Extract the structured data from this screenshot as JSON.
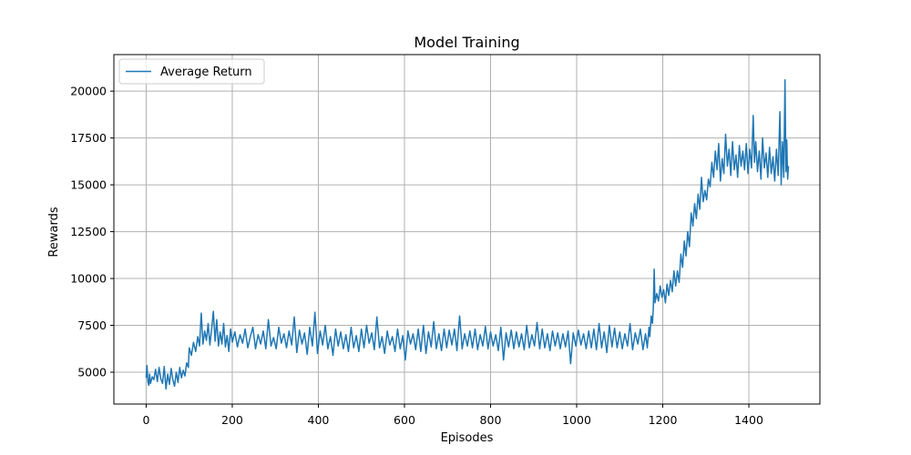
{
  "chart_data": {
    "type": "line",
    "title": "Model Training",
    "xlabel": "Episodes",
    "ylabel": "Rewards",
    "xlim": [
      -75,
      1565
    ],
    "ylim": [
      3300,
      21950
    ],
    "xticks": [
      0,
      200,
      400,
      600,
      800,
      1000,
      1200,
      1400
    ],
    "yticks": [
      5000,
      7500,
      10000,
      12500,
      15000,
      17500,
      20000
    ],
    "xtick_labels": [
      "0",
      "200",
      "400",
      "600",
      "800",
      "1000",
      "1200",
      "1400"
    ],
    "ytick_labels": [
      "5000",
      "7500",
      "10000",
      "12500",
      "15000",
      "17500",
      "20000"
    ],
    "grid": true,
    "legend_position": "upper left",
    "colors": {
      "series": "#1f77b4",
      "grid": "#b0b0b0",
      "axes": "#000000"
    },
    "series": [
      {
        "name": "Average Return",
        "points": [
          [
            0,
            4700
          ],
          [
            2,
            5350
          ],
          [
            4,
            4500
          ],
          [
            6,
            4300
          ],
          [
            8,
            4900
          ],
          [
            10,
            4400
          ],
          [
            14,
            4750
          ],
          [
            18,
            4600
          ],
          [
            22,
            5150
          ],
          [
            26,
            4500
          ],
          [
            30,
            5250
          ],
          [
            34,
            4650
          ],
          [
            38,
            4400
          ],
          [
            42,
            5300
          ],
          [
            46,
            4100
          ],
          [
            50,
            4900
          ],
          [
            54,
            4350
          ],
          [
            58,
            5200
          ],
          [
            62,
            4600
          ],
          [
            66,
            4250
          ],
          [
            70,
            5000
          ],
          [
            74,
            4450
          ],
          [
            78,
            5250
          ],
          [
            82,
            4700
          ],
          [
            86,
            5100
          ],
          [
            90,
            4800
          ],
          [
            94,
            5500
          ],
          [
            98,
            5250
          ],
          [
            100,
            6300
          ],
          [
            105,
            5900
          ],
          [
            110,
            6600
          ],
          [
            115,
            6100
          ],
          [
            120,
            6900
          ],
          [
            124,
            6400
          ],
          [
            128,
            8150
          ],
          [
            132,
            6500
          ],
          [
            136,
            7200
          ],
          [
            140,
            6700
          ],
          [
            144,
            7600
          ],
          [
            148,
            6450
          ],
          [
            152,
            7300
          ],
          [
            156,
            8250
          ],
          [
            160,
            6650
          ],
          [
            164,
            7800
          ],
          [
            168,
            6400
          ],
          [
            172,
            7150
          ],
          [
            176,
            6500
          ],
          [
            180,
            7600
          ],
          [
            184,
            6350
          ],
          [
            188,
            6950
          ],
          [
            192,
            6100
          ],
          [
            196,
            7300
          ],
          [
            200,
            6600
          ],
          [
            206,
            7150
          ],
          [
            212,
            6350
          ],
          [
            218,
            7000
          ],
          [
            224,
            6550
          ],
          [
            230,
            7300
          ],
          [
            236,
            6300
          ],
          [
            242,
            6900
          ],
          [
            248,
            7400
          ],
          [
            254,
            6250
          ],
          [
            260,
            7000
          ],
          [
            266,
            6500
          ],
          [
            272,
            7200
          ],
          [
            278,
            6250
          ],
          [
            284,
            7800
          ],
          [
            290,
            6400
          ],
          [
            296,
            6850
          ],
          [
            302,
            6250
          ],
          [
            308,
            7400
          ],
          [
            314,
            6550
          ],
          [
            320,
            7050
          ],
          [
            326,
            6300
          ],
          [
            332,
            7200
          ],
          [
            338,
            6450
          ],
          [
            344,
            7950
          ],
          [
            350,
            6050
          ],
          [
            356,
            7250
          ],
          [
            362,
            6500
          ],
          [
            368,
            7100
          ],
          [
            374,
            5950
          ],
          [
            380,
            7400
          ],
          [
            386,
            6400
          ],
          [
            392,
            8200
          ],
          [
            398,
            6000
          ],
          [
            404,
            7200
          ],
          [
            410,
            6450
          ],
          [
            416,
            7500
          ],
          [
            422,
            6250
          ],
          [
            428,
            6900
          ],
          [
            434,
            5900
          ],
          [
            440,
            7300
          ],
          [
            446,
            6400
          ],
          [
            452,
            7150
          ],
          [
            458,
            6250
          ],
          [
            464,
            7000
          ],
          [
            470,
            6100
          ],
          [
            476,
            7400
          ],
          [
            482,
            6300
          ],
          [
            488,
            6950
          ],
          [
            494,
            6100
          ],
          [
            500,
            7300
          ],
          [
            506,
            6300
          ],
          [
            512,
            7500
          ],
          [
            518,
            6550
          ],
          [
            524,
            7100
          ],
          [
            530,
            6200
          ],
          [
            536,
            7950
          ],
          [
            542,
            6300
          ],
          [
            548,
            6900
          ],
          [
            554,
            6000
          ],
          [
            560,
            7200
          ],
          [
            566,
            6450
          ],
          [
            572,
            6900
          ],
          [
            578,
            6100
          ],
          [
            584,
            7300
          ],
          [
            590,
            6250
          ],
          [
            596,
            6950
          ],
          [
            602,
            5650
          ],
          [
            608,
            7200
          ],
          [
            614,
            6500
          ],
          [
            620,
            7050
          ],
          [
            626,
            6200
          ],
          [
            632,
            7300
          ],
          [
            638,
            6100
          ],
          [
            644,
            7500
          ],
          [
            650,
            6000
          ],
          [
            656,
            7150
          ],
          [
            662,
            6350
          ],
          [
            668,
            7700
          ],
          [
            674,
            6250
          ],
          [
            680,
            7050
          ],
          [
            686,
            6150
          ],
          [
            692,
            7300
          ],
          [
            698,
            6300
          ],
          [
            704,
            7250
          ],
          [
            710,
            6450
          ],
          [
            716,
            7300
          ],
          [
            722,
            6150
          ],
          [
            728,
            8000
          ],
          [
            734,
            6250
          ],
          [
            740,
            7050
          ],
          [
            746,
            6400
          ],
          [
            752,
            7200
          ],
          [
            758,
            6300
          ],
          [
            764,
            7300
          ],
          [
            770,
            6200
          ],
          [
            776,
            7000
          ],
          [
            782,
            6400
          ],
          [
            788,
            7450
          ],
          [
            794,
            6250
          ],
          [
            800,
            7150
          ],
          [
            806,
            6400
          ],
          [
            812,
            7000
          ],
          [
            818,
            6150
          ],
          [
            824,
            7400
          ],
          [
            830,
            5650
          ],
          [
            836,
            7100
          ],
          [
            842,
            6350
          ],
          [
            848,
            7250
          ],
          [
            854,
            6250
          ],
          [
            860,
            7150
          ],
          [
            866,
            6350
          ],
          [
            872,
            7050
          ],
          [
            878,
            6200
          ],
          [
            884,
            7500
          ],
          [
            890,
            6300
          ],
          [
            896,
            7000
          ],
          [
            902,
            6400
          ],
          [
            908,
            7650
          ],
          [
            914,
            6250
          ],
          [
            920,
            7300
          ],
          [
            926,
            6300
          ],
          [
            932,
            7050
          ],
          [
            938,
            6150
          ],
          [
            944,
            7200
          ],
          [
            950,
            6400
          ],
          [
            956,
            7100
          ],
          [
            962,
            6250
          ],
          [
            968,
            7050
          ],
          [
            974,
            6350
          ],
          [
            980,
            7200
          ],
          [
            986,
            5450
          ],
          [
            992,
            7100
          ],
          [
            998,
            6400
          ],
          [
            1004,
            7250
          ],
          [
            1010,
            6450
          ],
          [
            1016,
            7050
          ],
          [
            1022,
            6250
          ],
          [
            1028,
            7200
          ],
          [
            1034,
            6300
          ],
          [
            1040,
            7300
          ],
          [
            1046,
            6200
          ],
          [
            1052,
            7600
          ],
          [
            1058,
            6300
          ],
          [
            1064,
            7150
          ],
          [
            1070,
            6050
          ],
          [
            1076,
            7500
          ],
          [
            1082,
            6350
          ],
          [
            1088,
            7350
          ],
          [
            1094,
            6300
          ],
          [
            1100,
            7150
          ],
          [
            1106,
            6250
          ],
          [
            1112,
            7050
          ],
          [
            1118,
            6400
          ],
          [
            1124,
            7600
          ],
          [
            1130,
            6200
          ],
          [
            1136,
            7100
          ],
          [
            1142,
            6500
          ],
          [
            1148,
            7300
          ],
          [
            1154,
            6200
          ],
          [
            1160,
            7050
          ],
          [
            1164,
            6300
          ],
          [
            1168,
            7400
          ],
          [
            1170,
            6900
          ],
          [
            1173,
            8000
          ],
          [
            1176,
            7600
          ],
          [
            1178,
            8400
          ],
          [
            1180,
            10500
          ],
          [
            1182,
            8700
          ],
          [
            1186,
            9200
          ],
          [
            1190,
            8800
          ],
          [
            1194,
            9600
          ],
          [
            1198,
            9000
          ],
          [
            1202,
            9400
          ],
          [
            1206,
            8700
          ],
          [
            1210,
            9700
          ],
          [
            1214,
            9100
          ],
          [
            1218,
            9900
          ],
          [
            1222,
            9300
          ],
          [
            1226,
            10400
          ],
          [
            1230,
            9600
          ],
          [
            1234,
            10400
          ],
          [
            1238,
            9800
          ],
          [
            1242,
            11300
          ],
          [
            1246,
            10600
          ],
          [
            1250,
            12000
          ],
          [
            1254,
            11200
          ],
          [
            1258,
            12500
          ],
          [
            1262,
            11700
          ],
          [
            1266,
            13500
          ],
          [
            1270,
            12800
          ],
          [
            1274,
            14000
          ],
          [
            1278,
            13200
          ],
          [
            1282,
            14500
          ],
          [
            1286,
            13700
          ],
          [
            1290,
            15400
          ],
          [
            1294,
            14100
          ],
          [
            1298,
            14700
          ],
          [
            1302,
            14200
          ],
          [
            1306,
            15300
          ],
          [
            1310,
            14900
          ],
          [
            1314,
            16200
          ],
          [
            1318,
            15400
          ],
          [
            1322,
            16800
          ],
          [
            1326,
            15800
          ],
          [
            1330,
            17200
          ],
          [
            1334,
            15200
          ],
          [
            1338,
            16400
          ],
          [
            1342,
            15600
          ],
          [
            1346,
            17700
          ],
          [
            1350,
            16000
          ],
          [
            1354,
            16900
          ],
          [
            1358,
            15500
          ],
          [
            1362,
            17300
          ],
          [
            1366,
            15800
          ],
          [
            1370,
            16600
          ],
          [
            1374,
            15400
          ],
          [
            1378,
            17100
          ],
          [
            1382,
            16000
          ],
          [
            1386,
            16800
          ],
          [
            1390,
            15800
          ],
          [
            1394,
            17200
          ],
          [
            1398,
            15600
          ],
          [
            1402,
            16900
          ],
          [
            1406,
            15900
          ],
          [
            1410,
            18700
          ],
          [
            1413,
            16200
          ],
          [
            1416,
            17300
          ],
          [
            1420,
            15700
          ],
          [
            1424,
            16800
          ],
          [
            1428,
            15300
          ],
          [
            1432,
            17500
          ],
          [
            1436,
            15900
          ],
          [
            1440,
            16700
          ],
          [
            1444,
            15400
          ],
          [
            1448,
            17000
          ],
          [
            1452,
            15600
          ],
          [
            1456,
            16500
          ],
          [
            1460,
            15200
          ],
          [
            1464,
            16900
          ],
          [
            1468,
            15500
          ],
          [
            1472,
            18900
          ],
          [
            1475,
            15000
          ],
          [
            1478,
            17300
          ],
          [
            1481,
            15400
          ],
          [
            1484,
            20600
          ],
          [
            1486,
            15700
          ],
          [
            1488,
            17400
          ],
          [
            1490,
            15300
          ],
          [
            1492,
            16000
          ]
        ]
      }
    ]
  }
}
